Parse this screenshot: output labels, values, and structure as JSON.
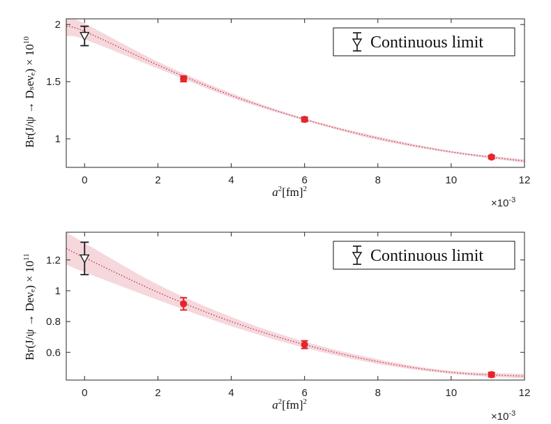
{
  "chart_data": [
    {
      "type": "scatter",
      "title": "",
      "xlabel": "a²[fm]²",
      "ylabel": "Br(J/ψ → Dₛeνₑ) × 10",
      "ylabel_exponent": "10",
      "x_multiplier": "×10",
      "x_multiplier_exponent": "-3",
      "xlim": [
        -0.5,
        12
      ],
      "ylim": [
        0.75,
        2.05
      ],
      "xticks": [
        0,
        2,
        4,
        6,
        8,
        10,
        12
      ],
      "yticks": [
        1,
        1.5,
        2
      ],
      "grid": false,
      "legend_position": "top-right",
      "legend_label": "Continuous limit",
      "continuum": {
        "x": 0,
        "y": 1.9,
        "err": 0.085
      },
      "points": [
        {
          "x": 2.7,
          "y": 1.525,
          "err": 0.025
        },
        {
          "x": 6.0,
          "y": 1.17,
          "err": 0.02
        },
        {
          "x": 11.1,
          "y": 0.84,
          "err": 0.015
        }
      ],
      "fit": {
        "x": [
          -0.5,
          0,
          2,
          4,
          6,
          8,
          10,
          12
        ],
        "y": [
          1.985,
          1.94,
          1.645,
          1.38,
          1.17,
          1.005,
          0.885,
          0.805
        ]
      },
      "band": {
        "x": [
          -0.5,
          0,
          2,
          4,
          6,
          8,
          10,
          12
        ],
        "lower": [
          1.9,
          1.87,
          1.615,
          1.36,
          1.16,
          0.99,
          0.875,
          0.79
        ],
        "upper": [
          2.07,
          2.01,
          1.675,
          1.4,
          1.18,
          1.02,
          0.895,
          0.82
        ]
      },
      "colors": {
        "points": "#e3262a",
        "fit": "#b5334a",
        "band": "#f3c9d0",
        "continuum": "#1a1a1a"
      }
    },
    {
      "type": "scatter",
      "title": "",
      "xlabel": "a²[fm]²",
      "ylabel": "Br(J/ψ → Deνₑ) × 10",
      "ylabel_exponent": "11",
      "x_multiplier": "×10",
      "x_multiplier_exponent": "-3",
      "xlim": [
        -0.5,
        12
      ],
      "ylim": [
        0.42,
        1.38
      ],
      "xticks": [
        0,
        2,
        4,
        6,
        8,
        10,
        12
      ],
      "yticks": [
        0.6,
        0.8,
        1,
        1.2
      ],
      "grid": false,
      "legend_position": "top-right",
      "legend_label": "Continuous limit",
      "continuum": {
        "x": 0,
        "y": 1.21,
        "err": 0.105
      },
      "points": [
        {
          "x": 2.7,
          "y": 0.915,
          "err": 0.04
        },
        {
          "x": 6.0,
          "y": 0.65,
          "err": 0.025
        },
        {
          "x": 11.1,
          "y": 0.455,
          "err": 0.015
        }
      ],
      "fit": {
        "x": [
          -0.5,
          0,
          2,
          4,
          6,
          8,
          10,
          12
        ],
        "y": [
          1.275,
          1.215,
          0.99,
          0.8,
          0.65,
          0.54,
          0.47,
          0.445
        ]
      },
      "band": {
        "x": [
          -0.5,
          0,
          2,
          4,
          6,
          8,
          10,
          12
        ],
        "lower": [
          1.17,
          1.12,
          0.94,
          0.77,
          0.63,
          0.525,
          0.46,
          0.43
        ],
        "upper": [
          1.38,
          1.31,
          1.04,
          0.83,
          0.67,
          0.555,
          0.48,
          0.46
        ]
      },
      "colors": {
        "points": "#e3262a",
        "fit": "#b5334a",
        "band": "#f3c9d0",
        "continuum": "#1a1a1a"
      }
    }
  ]
}
